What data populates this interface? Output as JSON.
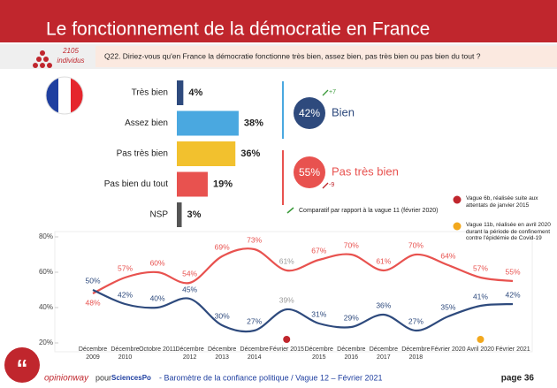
{
  "header": {
    "title": "Le fonctionnement de la démocratie en France",
    "sample_size": "2105",
    "sample_unit": "individus",
    "question": "Q22. Diriez-vous qu'en France la démocratie fonctionne très bien, assez bien, pas très bien ou pas bien du tout ?"
  },
  "chart_data": [
    {
      "type": "bar",
      "orientation": "horizontal",
      "categories": [
        "Très bien",
        "Assez bien",
        "Pas très bien",
        "Pas bien du tout",
        "NSP"
      ],
      "values": [
        4,
        38,
        36,
        19,
        3
      ],
      "value_labels": [
        "4%",
        "38%",
        "36%",
        "19%",
        "3%"
      ],
      "colors": [
        "#2e4a7d",
        "#4aa8e0",
        "#f2c12e",
        "#e8524f",
        "#555555"
      ],
      "xlim": [
        0,
        50
      ]
    },
    {
      "type": "line",
      "x": [
        "Décembre 2009",
        "Décembre 2010",
        "Octobre 2011",
        "Décembre 2012",
        "Décembre 2013",
        "Décembre 2014",
        "Février 2015",
        "Décembre 2015",
        "Décembre 2016",
        "Décembre 2017",
        "Décembre 2018",
        "Février 2020",
        "Avril 2020",
        "Février 2021"
      ],
      "series": [
        {
          "name": "Pas très bien",
          "color": "#e8524f",
          "values": [
            48,
            57,
            60,
            54,
            69,
            73,
            61,
            67,
            70,
            61,
            70,
            64,
            57,
            55
          ],
          "value_labels": [
            "48%",
            "57%",
            "60%",
            "54%",
            "69%",
            "73%",
            "61%",
            "67%",
            "70%",
            "61%",
            "70%",
            "64%",
            "57%",
            "55%"
          ]
        },
        {
          "name": "Bien",
          "color": "#2e4a7d",
          "values": [
            50,
            42,
            40,
            45,
            30,
            27,
            39,
            31,
            29,
            36,
            27,
            35,
            41,
            42
          ],
          "value_labels": [
            "50%",
            "42%",
            "40%",
            "45%",
            "30%",
            "27%",
            "39%",
            "31%",
            "29%",
            "36%",
            "27%",
            "35%",
            "41%",
            "42%"
          ]
        }
      ],
      "ylim": [
        20,
        80
      ],
      "yticks": [
        {
          "value": 20,
          "label": "20%"
        },
        {
          "value": 40,
          "label": "40%"
        },
        {
          "value": 60,
          "label": "60%"
        },
        {
          "value": 80,
          "label": "80%"
        }
      ],
      "highlight": {
        "index": 6,
        "color": "#999999"
      }
    }
  ],
  "summary": [
    {
      "value": 42,
      "value_label": "42%",
      "change": "+7",
      "change_color": "#3a9a3a"
    },
    {
      "value": 55,
      "value_label": "55%",
      "change": "-9",
      "change_color": "#c0262d"
    }
  ],
  "notes": {
    "comparison": "Comparatif par rapport à la vague 11 (février 2020)",
    "events": [
      {
        "text": "Vague 6b, réalisée suite aux attentats de janvier 2015",
        "color": "#c0262d",
        "index": 6
      },
      {
        "text": "Vague 11b, réalisée en avril 2020 durant la période de confinement contre l'épidémie de Covid-19",
        "color": "#f2a81d",
        "index": 12
      }
    ]
  },
  "footer": {
    "brand": "opinionway",
    "pour": "pour",
    "partner": "SciencesPo",
    "caption": "- Baromètre de la confiance politique / Vague 12 – Février 2021",
    "page": "page 36"
  }
}
